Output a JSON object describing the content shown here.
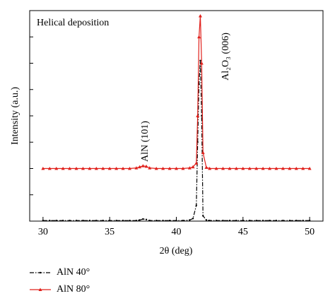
{
  "chart_data": {
    "type": "line",
    "annotations": [
      "Helical deposition",
      "AlN (101)",
      "Al₂O₃ (006)"
    ],
    "xlabel": "2θ (deg)",
    "ylabel": "Intensity (a.u.)",
    "x": [
      30,
      30.5,
      31,
      31.5,
      32,
      32.5,
      33,
      33.5,
      34,
      34.5,
      35,
      35.5,
      36,
      36.5,
      37,
      37.25,
      37.5,
      37.75,
      38,
      38.5,
      39,
      39.5,
      40,
      40.5,
      41,
      41.25,
      41.5,
      41.6,
      41.7,
      41.8,
      41.9,
      42,
      42.25,
      42.5,
      43,
      43.5,
      44,
      44.5,
      45,
      45.5,
      46,
      46.5,
      47,
      47.5,
      48,
      48.5,
      49,
      49.5,
      50
    ],
    "series": [
      {
        "name": "AlN 40°",
        "color": "#000000",
        "marker": "dot",
        "linestyle": "dashdot",
        "values": [
          0.01,
          0.01,
          0.01,
          0.01,
          0.01,
          0.01,
          0.01,
          0.01,
          0.01,
          0.01,
          0.01,
          0.01,
          0.01,
          0.01,
          0.01,
          0.02,
          0.04,
          0.03,
          0.01,
          0.01,
          0.01,
          0.01,
          0.01,
          0.01,
          0.02,
          0.05,
          0.3,
          1.5,
          2.6,
          3.05,
          2.0,
          0.1,
          0.02,
          0.01,
          0.01,
          0.01,
          0.01,
          0.01,
          0.01,
          0.01,
          0.01,
          0.01,
          0.01,
          0.01,
          0.01,
          0.01,
          0.01,
          0.01,
          0.01
        ]
      },
      {
        "name": "AlN 80°",
        "color": "#e0201b",
        "marker": "triangle",
        "linestyle": "solid",
        "values": [
          1.0,
          1.0,
          1.0,
          1.0,
          1.0,
          1.0,
          1.0,
          1.0,
          1.0,
          1.0,
          1.0,
          1.0,
          1.0,
          1.0,
          1.01,
          1.03,
          1.05,
          1.04,
          1.01,
          1.0,
          1.0,
          1.0,
          1.0,
          1.0,
          1.01,
          1.03,
          1.1,
          2.0,
          3.5,
          3.9,
          3.0,
          1.3,
          1.02,
          1.0,
          1.0,
          1.0,
          1.0,
          1.0,
          1.0,
          1.0,
          1.0,
          1.0,
          1.0,
          1.0,
          1.0,
          1.0,
          1.0,
          1.0,
          1.0
        ]
      }
    ],
    "xlim": [
      29,
      51
    ],
    "xticks": [
      30,
      35,
      40,
      45,
      50
    ],
    "ylim": [
      0,
      4
    ],
    "yticks": [
      0,
      0.5,
      1,
      1.5,
      2,
      2.5,
      3,
      3.5,
      4
    ],
    "grid": false
  }
}
